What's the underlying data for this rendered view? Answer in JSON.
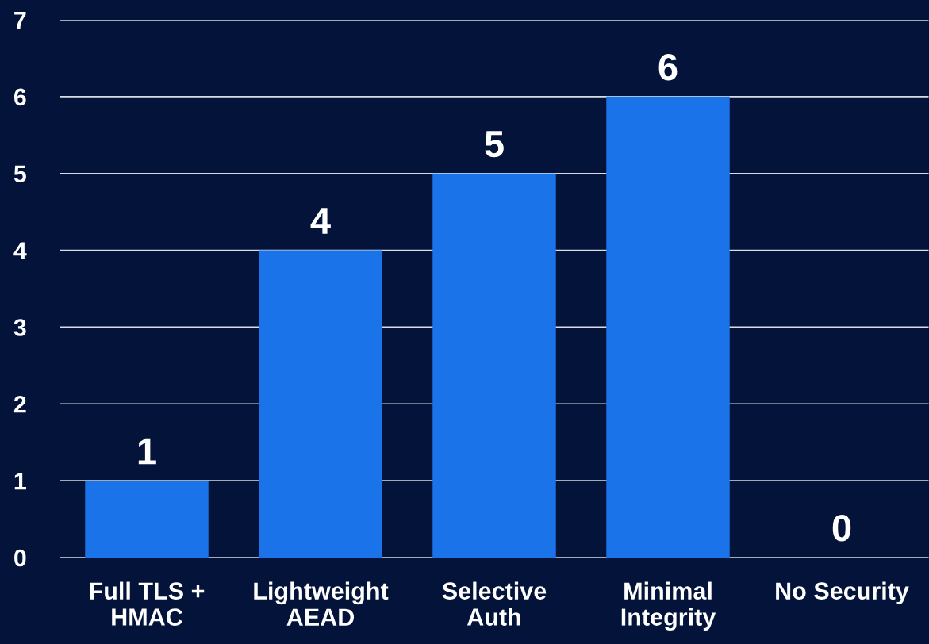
{
  "chart_data": {
    "type": "bar",
    "categories": [
      "Full TLS +\nHMAC",
      "Lightweight\nAEAD",
      "Selective\nAuth",
      "Minimal\nIntegrity",
      "No Security"
    ],
    "values": [
      1,
      4,
      5,
      6,
      0
    ],
    "color": "#1a73e8",
    "ylim": [
      0,
      7
    ],
    "yticks": [
      0,
      1,
      2,
      3,
      4,
      5,
      6,
      7
    ],
    "grid": "y",
    "data_labels": true
  }
}
